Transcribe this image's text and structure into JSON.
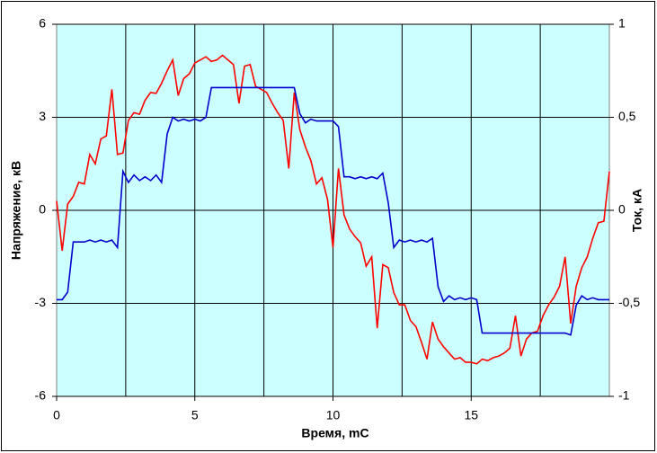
{
  "chart_data": {
    "type": "line",
    "xlabel": "Время, mС",
    "ylabel": "Напряжение, кВ",
    "y2label": "Ток, кА",
    "x": [
      0,
      0.2,
      0.4,
      0.6,
      0.8,
      1,
      1.2,
      1.4,
      1.6,
      1.8,
      2,
      2.2,
      2.4,
      2.6,
      2.8,
      3,
      3.2,
      3.4,
      3.6,
      3.8,
      4,
      4.2,
      4.4,
      4.6,
      4.8,
      5,
      5.2,
      5.4,
      5.6,
      5.8,
      6,
      6.2,
      6.4,
      6.6,
      6.8,
      7,
      7.2,
      7.4,
      7.6,
      7.8,
      8,
      8.2,
      8.4,
      8.6,
      8.8,
      9,
      9.2,
      9.4,
      9.6,
      9.8,
      10,
      10.2,
      10.4,
      10.6,
      10.8,
      11,
      11.2,
      11.4,
      11.6,
      11.8,
      12,
      12.2,
      12.4,
      12.6,
      12.8,
      13,
      13.2,
      13.4,
      13.6,
      13.8,
      14,
      14.2,
      14.4,
      14.6,
      14.8,
      15,
      15.2,
      15.4,
      15.6,
      15.8,
      16,
      16.2,
      16.4,
      16.6,
      16.8,
      17,
      17.2,
      17.4,
      17.6,
      17.8,
      18,
      18.2,
      18.4,
      18.6,
      18.8,
      19,
      19.2,
      19.4,
      19.6,
      19.8,
      20
    ],
    "series": [
      {
        "color": "#ff0000",
        "axis": "y",
        "values": [
          0.3,
          -1.3,
          0.2,
          0.45,
          0.9,
          0.85,
          1.8,
          1.5,
          2.3,
          2.4,
          3.9,
          1.8,
          1.85,
          2.9,
          3.15,
          3.1,
          3.55,
          3.8,
          3.77,
          4.1,
          4.5,
          4.85,
          3.7,
          4.25,
          4.4,
          4.75,
          4.85,
          4.95,
          4.8,
          4.85,
          5.0,
          4.85,
          4.7,
          3.45,
          4.65,
          4.7,
          4.0,
          3.9,
          3.8,
          3.45,
          3.15,
          2.9,
          1.35,
          3.8,
          2.6,
          2.05,
          1.6,
          0.85,
          1.05,
          0.35,
          -1.2,
          1.35,
          -0.15,
          -0.6,
          -0.85,
          -1.05,
          -1.8,
          -1.5,
          -3.8,
          -1.75,
          -1.85,
          -2.65,
          -3.05,
          -3.05,
          -3.55,
          -3.75,
          -4.25,
          -4.8,
          -3.6,
          -4.15,
          -4.4,
          -4.6,
          -4.8,
          -4.75,
          -4.9,
          -4.9,
          -4.95,
          -4.8,
          -4.85,
          -4.75,
          -4.7,
          -4.6,
          -4.45,
          -3.4,
          -4.7,
          -4.15,
          -3.95,
          -3.9,
          -3.4,
          -3.05,
          -2.8,
          -2.45,
          -1.5,
          -3.65,
          -2.45,
          -1.85,
          -1.5,
          -0.9,
          -0.4,
          -0.35,
          1.25
        ]
      },
      {
        "color": "#0000cc",
        "axis": "y2",
        "values": [
          -0.48,
          -0.48,
          -0.44,
          -0.17,
          -0.17,
          -0.17,
          -0.16,
          -0.17,
          -0.16,
          -0.17,
          -0.16,
          -0.2,
          0.21,
          0.15,
          0.19,
          0.16,
          0.18,
          0.16,
          0.19,
          0.15,
          0.41,
          0.5,
          0.48,
          0.49,
          0.48,
          0.49,
          0.48,
          0.5,
          0.66,
          0.66,
          0.66,
          0.66,
          0.66,
          0.66,
          0.66,
          0.66,
          0.66,
          0.66,
          0.66,
          0.66,
          0.66,
          0.66,
          0.66,
          0.66,
          0.52,
          0.47,
          0.49,
          0.48,
          0.48,
          0.48,
          0.48,
          0.45,
          0.18,
          0.18,
          0.17,
          0.18,
          0.17,
          0.18,
          0.17,
          0.2,
          0.04,
          -0.2,
          -0.16,
          -0.17,
          -0.16,
          -0.17,
          -0.16,
          -0.17,
          -0.15,
          -0.41,
          -0.49,
          -0.46,
          -0.48,
          -0.47,
          -0.48,
          -0.47,
          -0.48,
          -0.66,
          -0.66,
          -0.66,
          -0.66,
          -0.66,
          -0.66,
          -0.66,
          -0.66,
          -0.66,
          -0.66,
          -0.66,
          -0.66,
          -0.66,
          -0.66,
          -0.66,
          -0.66,
          -0.67,
          -0.51,
          -0.46,
          -0.48,
          -0.47,
          -0.48,
          -0.48,
          -0.48
        ]
      }
    ],
    "xlim": [
      0,
      20
    ],
    "xticks": [
      0,
      5,
      10,
      15
    ],
    "xgrid": [
      2.5,
      5,
      7.5,
      10,
      12.5,
      15,
      17.5
    ],
    "ylim": [
      -6,
      6
    ],
    "yticks": [
      -6,
      -3,
      0,
      3,
      6
    ],
    "y2lim": [
      -1,
      1
    ],
    "y2ticks": [
      {
        "value": -1,
        "label": "-1"
      },
      {
        "value": -0.5,
        "label": "-0,5"
      },
      0,
      {
        "value": 0.5,
        "label": "0,5"
      },
      1
    ],
    "grid": true,
    "background": "#ccffff"
  }
}
